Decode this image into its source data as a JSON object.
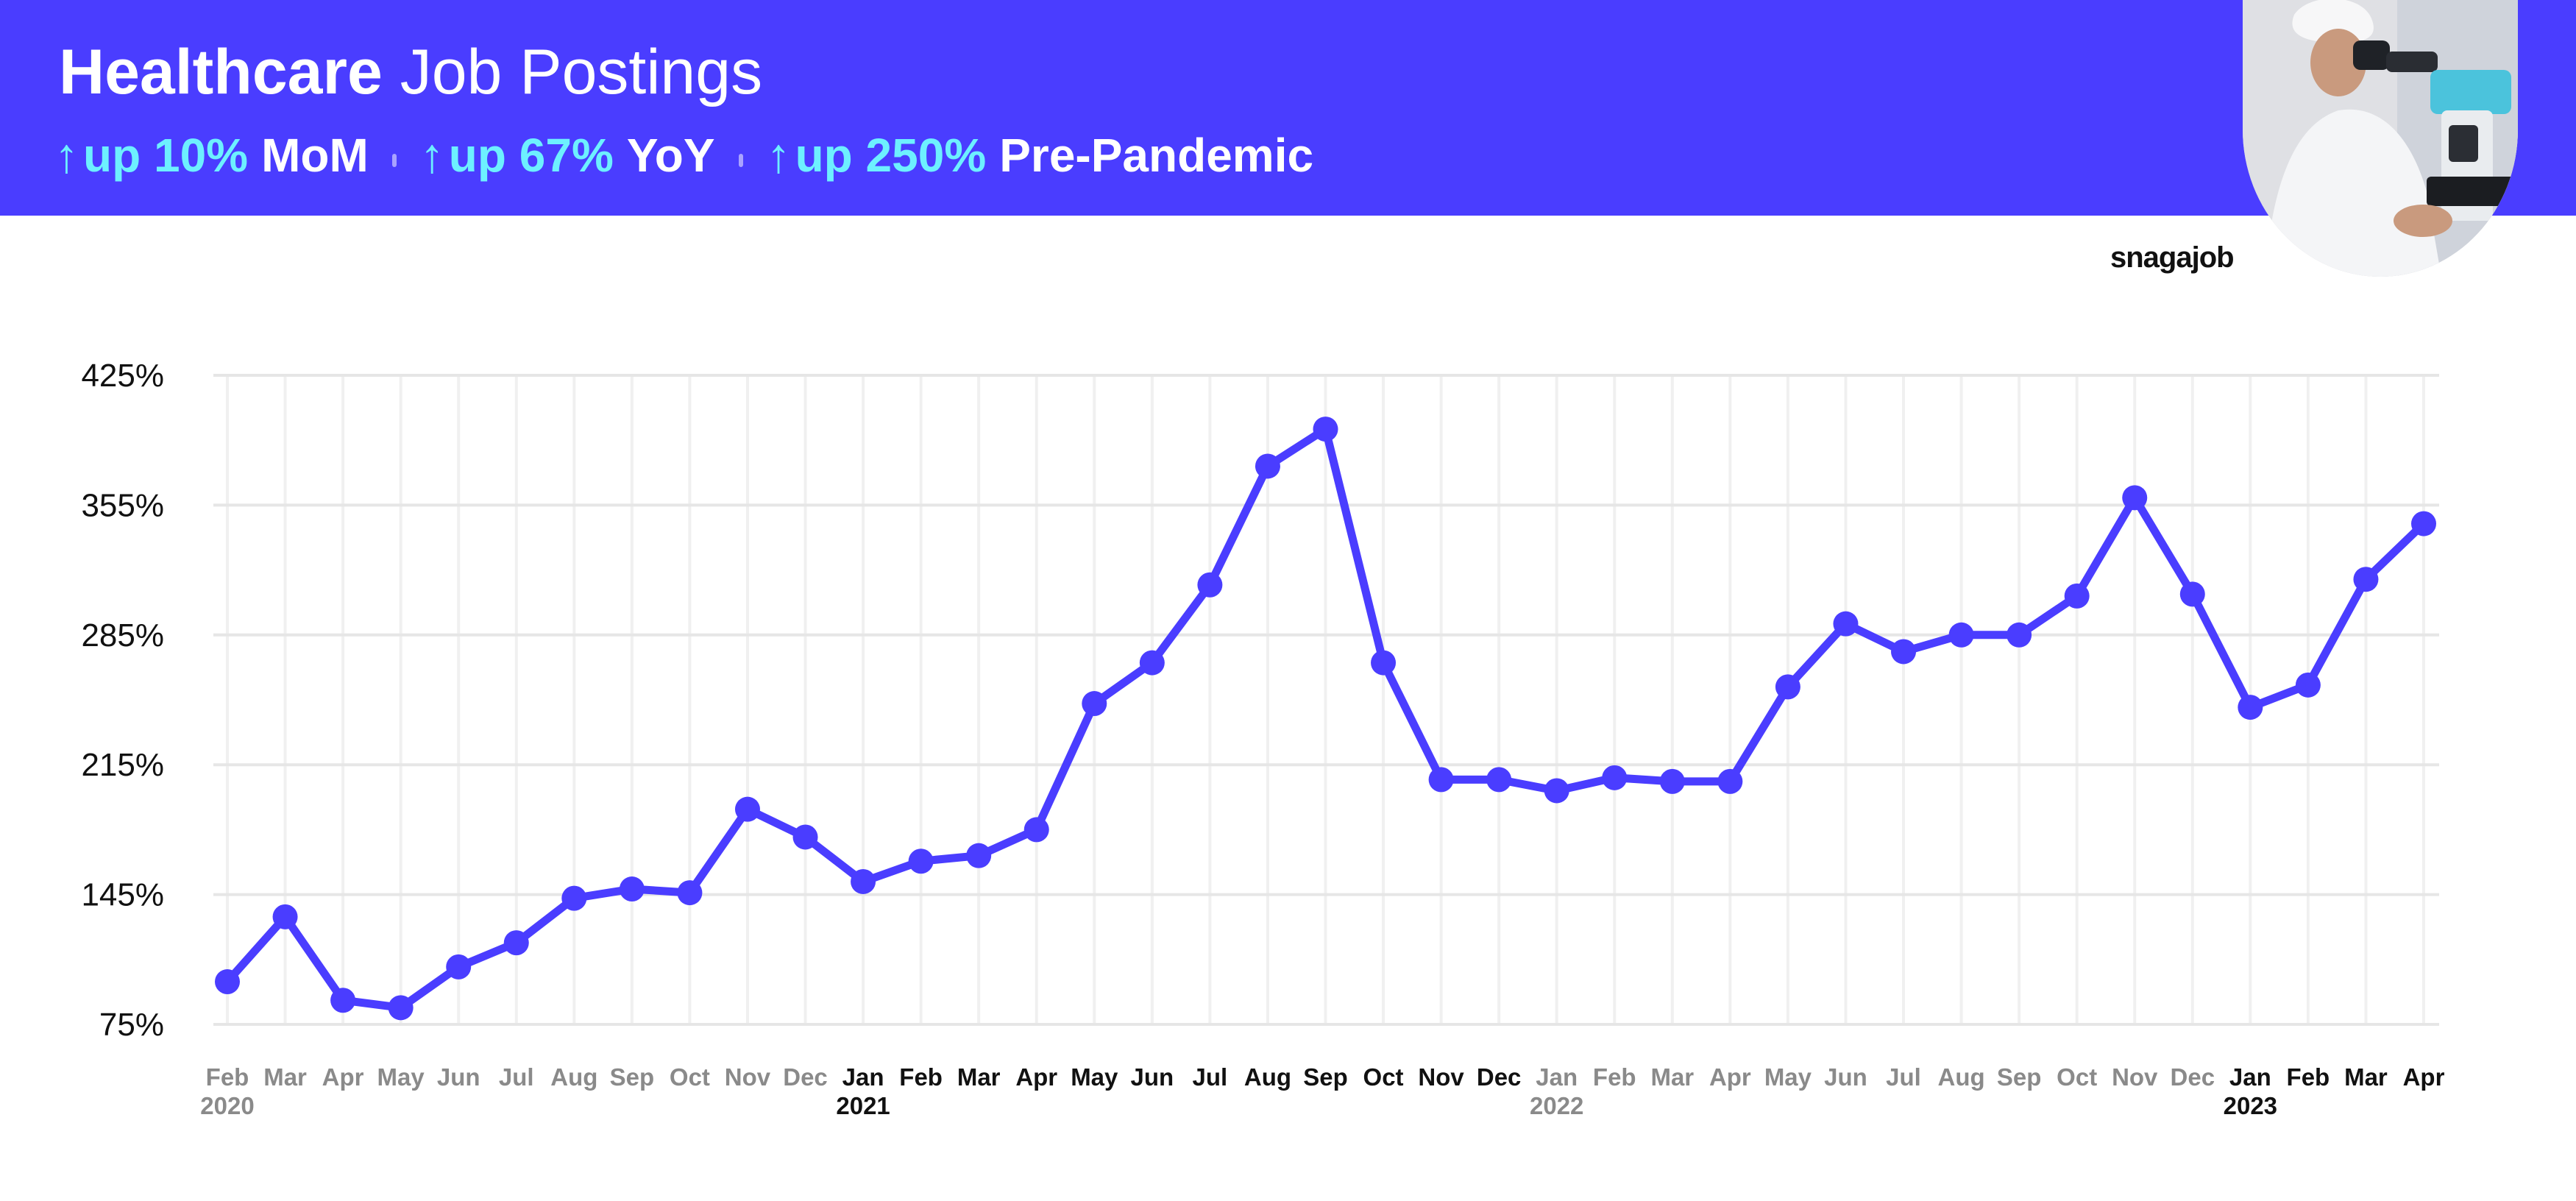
{
  "header": {
    "title_bold": "Healthcare",
    "title_rest": " Job Postings",
    "stats": [
      {
        "arrow": "↑",
        "value": "up 10%",
        "label": "MoM"
      },
      {
        "arrow": "↑",
        "value": "up 67%",
        "label": "YoY"
      },
      {
        "arrow": "↑",
        "value": "up 250%",
        "label": "Pre-Pandemic"
      }
    ],
    "brand": "snagajob"
  },
  "colors": {
    "banner": "#4a3dff",
    "accent": "#6df0ff",
    "line": "#4a3dff",
    "grid": "#e6e6e6"
  },
  "chart_data": {
    "type": "line",
    "title": "Healthcare Job Postings",
    "ylim": [
      75,
      425
    ],
    "yticks": [
      "425%",
      "355%",
      "285%",
      "215%",
      "145%",
      "75%"
    ],
    "ytick_values": [
      425,
      355,
      285,
      215,
      145,
      75
    ],
    "grid": true,
    "x": [
      {
        "month": "Feb",
        "year": "2020"
      },
      {
        "month": "Mar"
      },
      {
        "month": "Apr"
      },
      {
        "month": "May"
      },
      {
        "month": "Jun"
      },
      {
        "month": "Jul"
      },
      {
        "month": "Aug"
      },
      {
        "month": "Sep"
      },
      {
        "month": "Oct"
      },
      {
        "month": "Nov"
      },
      {
        "month": "Dec"
      },
      {
        "month": "Jan",
        "year": "2021",
        "highlight": true
      },
      {
        "month": "Feb",
        "highlight": true
      },
      {
        "month": "Mar",
        "highlight": true
      },
      {
        "month": "Apr",
        "highlight": true
      },
      {
        "month": "May",
        "highlight": true
      },
      {
        "month": "Jun",
        "highlight": true
      },
      {
        "month": "Jul",
        "highlight": true
      },
      {
        "month": "Aug",
        "highlight": true
      },
      {
        "month": "Sep",
        "highlight": true
      },
      {
        "month": "Oct",
        "highlight": true
      },
      {
        "month": "Nov",
        "highlight": true
      },
      {
        "month": "Dec",
        "highlight": true
      },
      {
        "month": "Jan",
        "year": "2022"
      },
      {
        "month": "Feb"
      },
      {
        "month": "Mar"
      },
      {
        "month": "Apr"
      },
      {
        "month": "May"
      },
      {
        "month": "Jun"
      },
      {
        "month": "Jul"
      },
      {
        "month": "Aug"
      },
      {
        "month": "Sep"
      },
      {
        "month": "Oct"
      },
      {
        "month": "Nov"
      },
      {
        "month": "Dec"
      },
      {
        "month": "Jan",
        "year": "2023",
        "highlight": true
      },
      {
        "month": "Feb",
        "highlight": true
      },
      {
        "month": "Mar",
        "highlight": true
      },
      {
        "month": "Apr",
        "highlight": true
      }
    ],
    "series": [
      {
        "values": [
          98,
          133,
          88,
          84,
          106,
          119,
          143,
          148,
          146,
          191,
          176,
          152,
          163,
          166,
          180,
          248,
          270,
          312,
          376,
          396,
          270,
          207,
          207,
          201,
          208,
          206,
          206,
          257,
          291,
          276,
          285,
          285,
          306,
          359,
          307,
          246,
          258,
          315,
          345
        ]
      }
    ]
  }
}
